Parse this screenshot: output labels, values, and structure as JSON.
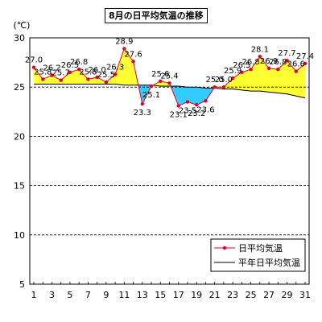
{
  "chart_data": {
    "type": "line",
    "title": "8月の日平均気温の推移",
    "ylabel": "(℃)",
    "xlabel": "",
    "ylim": [
      5,
      30
    ],
    "yticks": [
      5,
      10,
      15,
      20,
      25,
      30
    ],
    "xticks": [
      1,
      3,
      5,
      7,
      9,
      11,
      13,
      15,
      17,
      19,
      21,
      23,
      25,
      27,
      29,
      31
    ],
    "x": [
      1,
      2,
      3,
      4,
      5,
      6,
      7,
      8,
      9,
      10,
      11,
      12,
      13,
      14,
      15,
      16,
      17,
      18,
      19,
      20,
      21,
      22,
      23,
      24,
      25,
      26,
      27,
      28,
      29,
      30,
      31
    ],
    "grid": "horizontal dashed",
    "legend_position": "bottom-right",
    "series": [
      {
        "name": "日平均気温",
        "color": "#e0002a",
        "marker": "circle",
        "values": [
          27.0,
          25.8,
          26.2,
          25.7,
          26.5,
          26.8,
          25.8,
          26.0,
          25.5,
          26.3,
          28.9,
          27.6,
          23.3,
          25.1,
          25.6,
          25.4,
          23.1,
          23.5,
          23.2,
          23.6,
          25.0,
          25.0,
          25.9,
          26.5,
          26.8,
          28.1,
          26.9,
          26.8,
          27.7,
          26.6,
          27.4
        ]
      },
      {
        "name": "平年日平均気温",
        "color": "#000000",
        "values": [
          25.3,
          25.3,
          25.3,
          25.3,
          25.3,
          25.3,
          25.3,
          25.3,
          25.3,
          25.3,
          25.2,
          25.2,
          25.2,
          25.2,
          25.1,
          25.1,
          25.1,
          25.0,
          25.0,
          24.9,
          24.9,
          24.8,
          24.8,
          24.7,
          24.6,
          24.6,
          24.5,
          24.4,
          24.3,
          24.1,
          23.9
        ]
      }
    ],
    "fill_above_color": "#ffff33",
    "fill_below_color": "#33ccff"
  }
}
